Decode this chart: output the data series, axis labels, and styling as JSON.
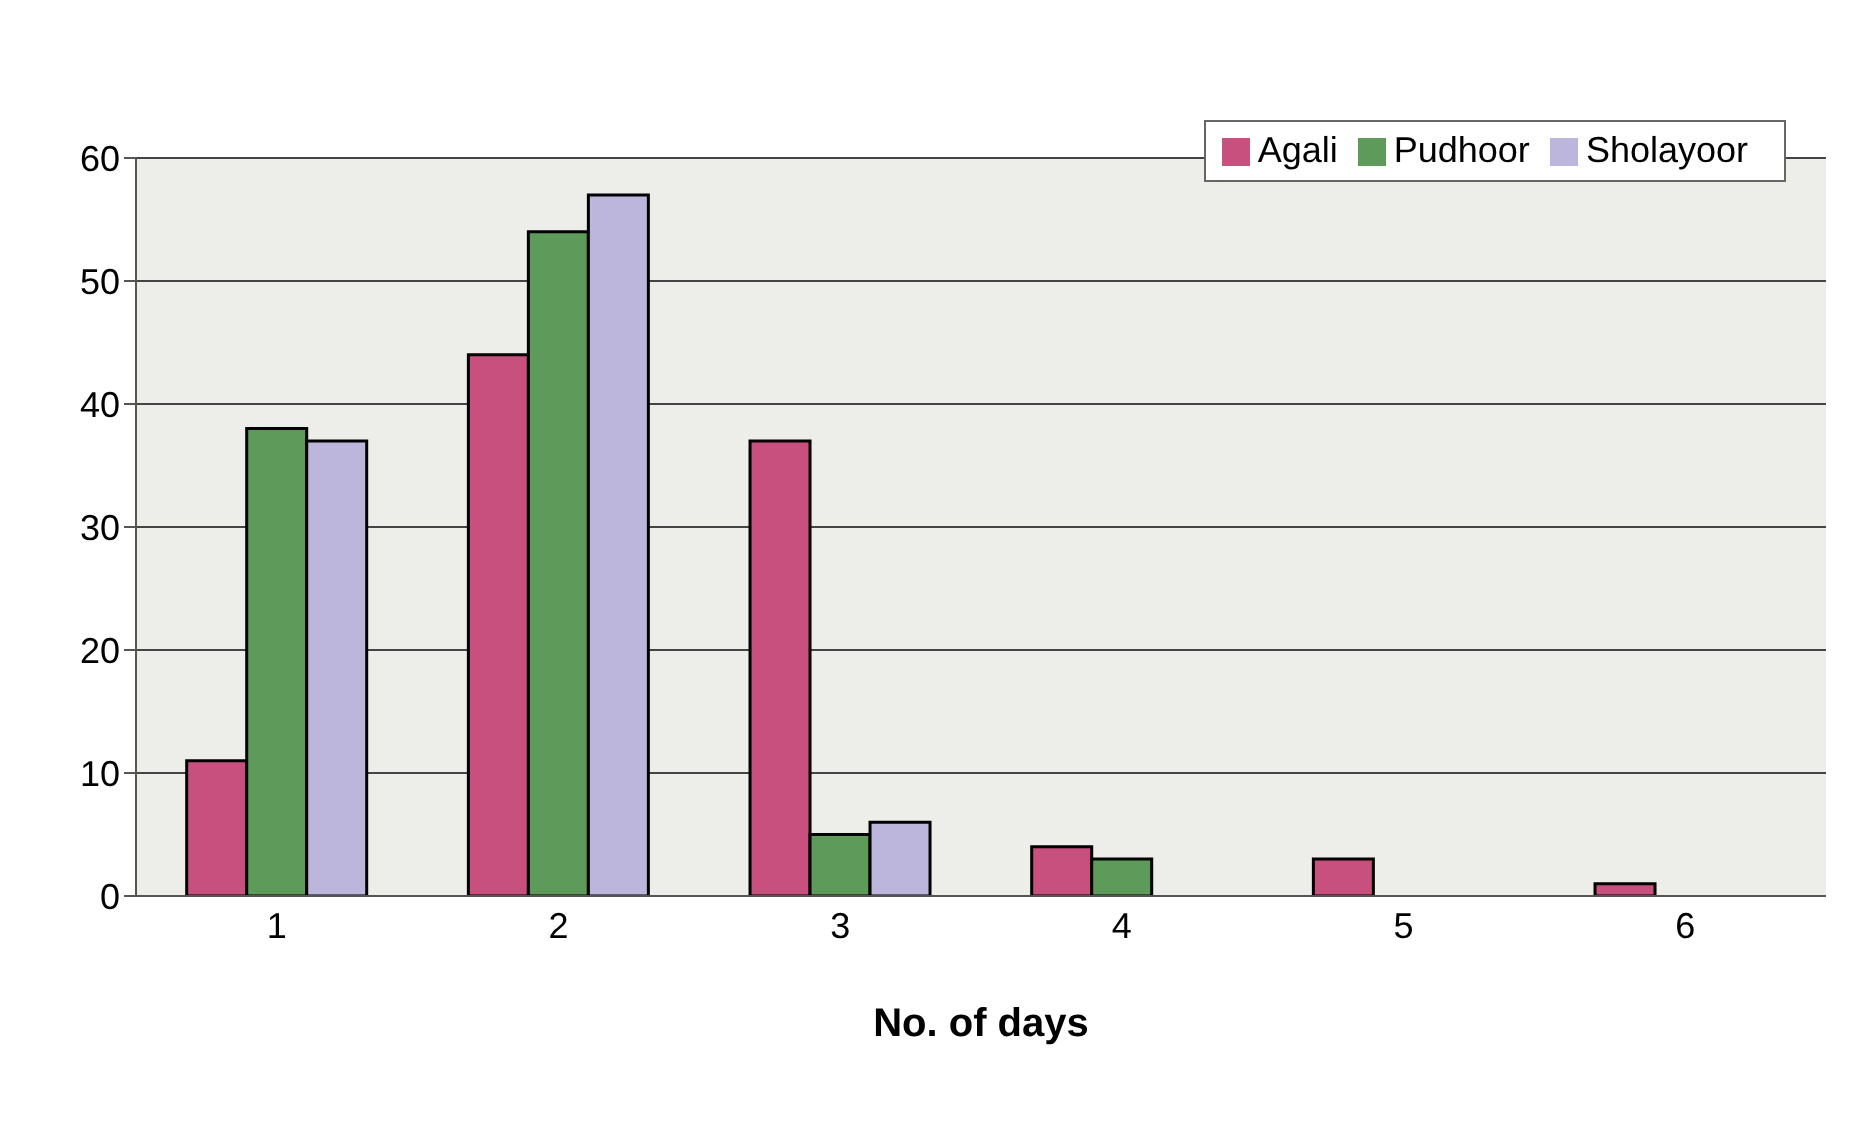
{
  "chart_data": {
    "type": "bar",
    "xlabel": "No. of days",
    "categories": [
      "1",
      "2",
      "3",
      "4",
      "5",
      "6"
    ],
    "series": [
      {
        "name": "Agali",
        "color": "#c8507e",
        "values": [
          11,
          44,
          37,
          4,
          3,
          1
        ]
      },
      {
        "name": "Pudhoor",
        "color": "#5e9a5a",
        "values": [
          38,
          54,
          5,
          3,
          0,
          0
        ]
      },
      {
        "name": "Sholayoor",
        "color": "#bdb6dc",
        "values": [
          37,
          57,
          6,
          0,
          0,
          0
        ]
      }
    ],
    "ylim": [
      0,
      60
    ],
    "yticks": [
      0,
      10,
      20,
      30,
      40,
      50,
      60
    ],
    "grid": "y",
    "legend": "top right"
  }
}
